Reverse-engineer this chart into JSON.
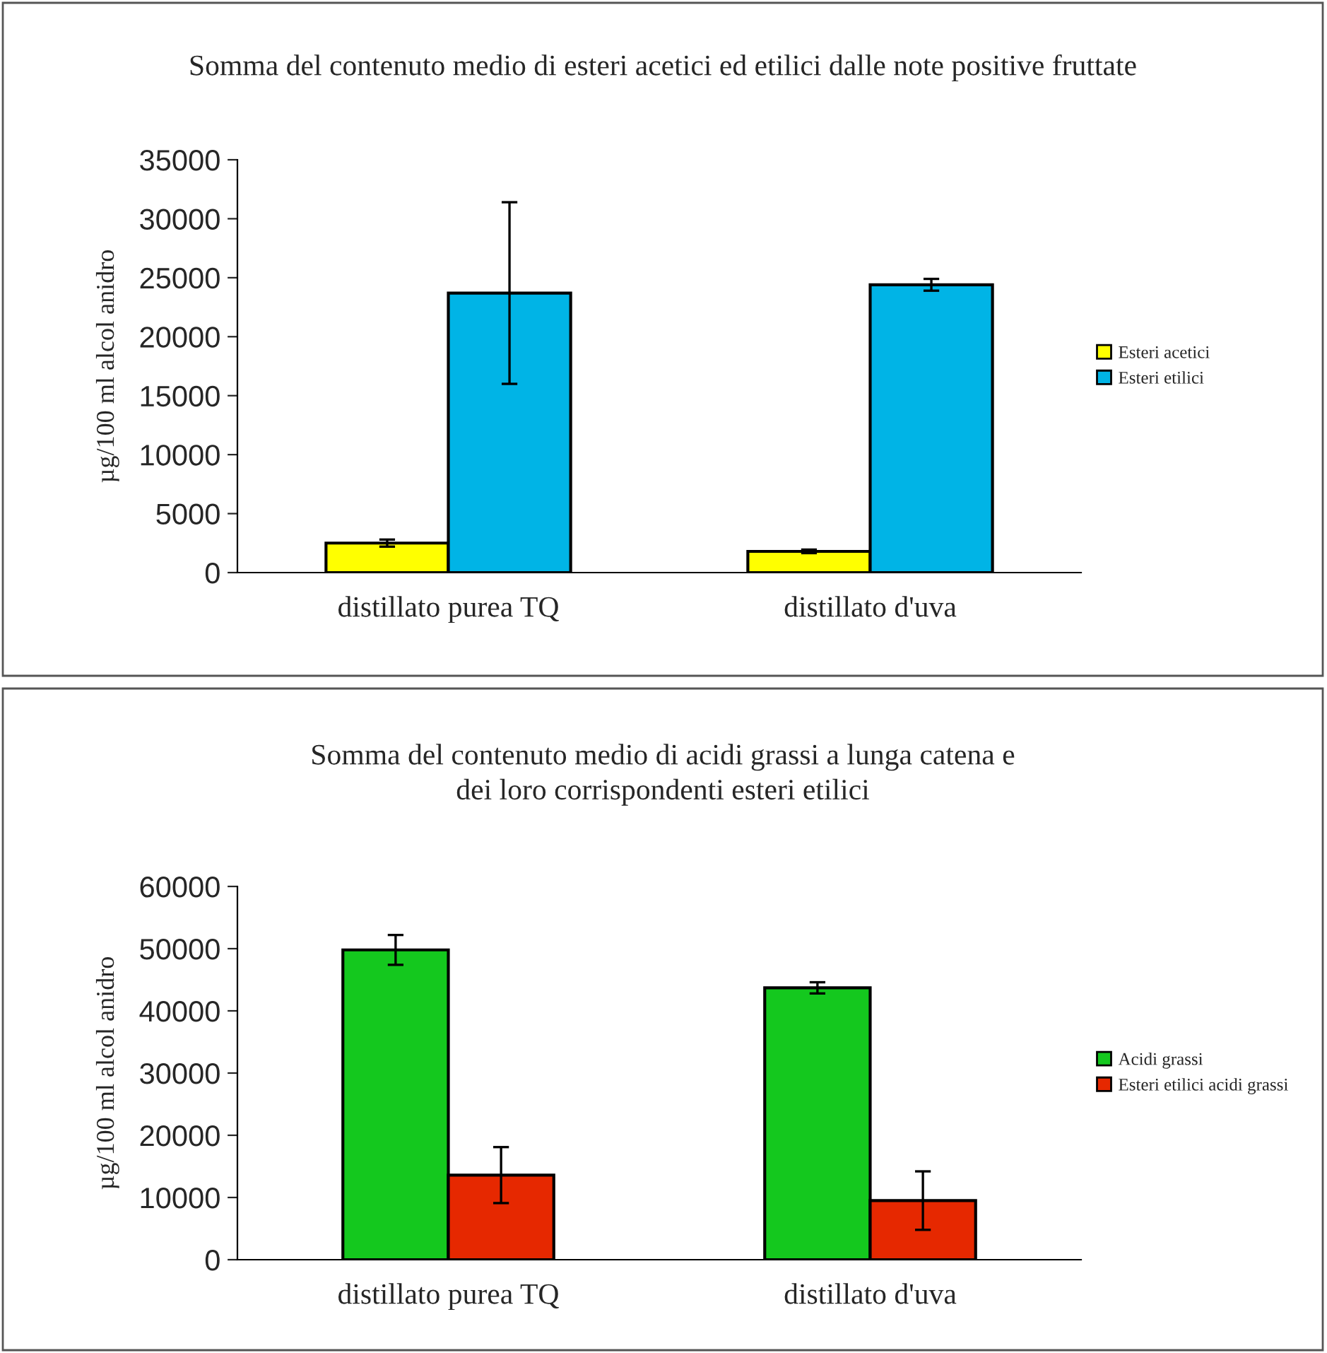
{
  "chart_data": [
    {
      "type": "bar",
      "title": "Somma del contenuto medio di esteri acetici ed etilici dalle note positive fruttate",
      "ylabel": "µg/100 ml alcol anidro",
      "categories": [
        "distillato purea TQ",
        "distillato d'uva"
      ],
      "ylim": [
        0,
        35000
      ],
      "yticks": [
        0,
        5000,
        10000,
        15000,
        20000,
        25000,
        30000,
        35000
      ],
      "grid": false,
      "legend": "right",
      "series": [
        {
          "name": "Esteri acetici",
          "color": "#ffff00",
          "values": [
            2500,
            1800
          ],
          "errors": [
            300,
            150
          ]
        },
        {
          "name": "Esteri etilici",
          "color": "#00b4e6",
          "values": [
            23700,
            24400
          ],
          "errors": [
            7700,
            500
          ]
        }
      ]
    },
    {
      "type": "bar",
      "title": "Somma del contenuto medio di acidi grassi a lunga catena e\ndei loro corrispondenti esteri etilici",
      "ylabel": "µg/100 ml alcol anidro",
      "categories": [
        "distillato purea TQ",
        "distillato d'uva"
      ],
      "ylim": [
        0,
        60000
      ],
      "yticks": [
        0,
        10000,
        20000,
        30000,
        40000,
        50000,
        60000
      ],
      "grid": false,
      "legend": "right",
      "series": [
        {
          "name": "Acidi grassi",
          "color": "#14c81e",
          "values": [
            49800,
            43700
          ],
          "errors": [
            2400,
            900
          ]
        },
        {
          "name": "Esteri etilici acidi grassi",
          "color": "#e62800",
          "values": [
            13600,
            9500
          ],
          "errors": [
            4500,
            4700
          ]
        }
      ]
    }
  ]
}
